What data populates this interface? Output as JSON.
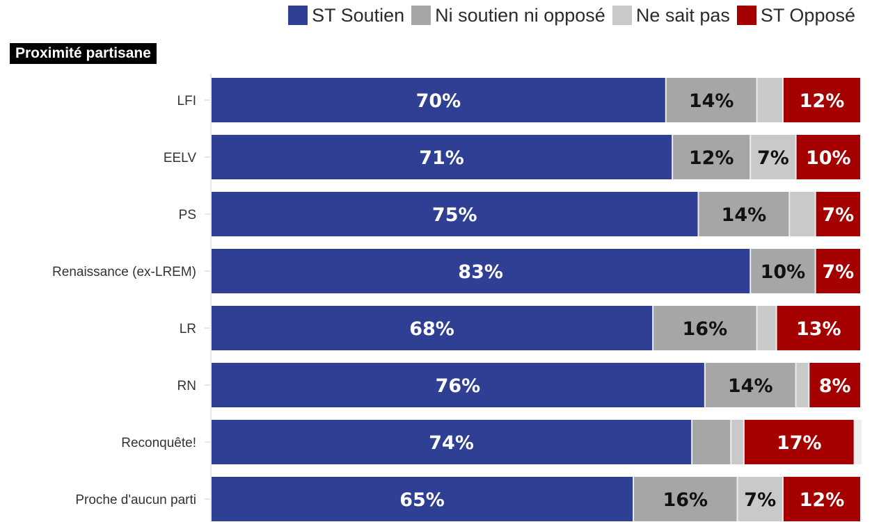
{
  "legend": [
    {
      "label": "ST Soutien",
      "color": "#2f3f93"
    },
    {
      "label": "Ni soutien ni opposé",
      "color": "#a6a6a6"
    },
    {
      "label": "Ne sait pas",
      "color": "#c9c9c9"
    },
    {
      "label": "ST Opposé",
      "color": "#a40000"
    }
  ],
  "section_title": "Proximité partisane",
  "chart_data": {
    "type": "bar",
    "orientation": "horizontal",
    "stacked": true,
    "unit": "%",
    "categories": [
      "LFI",
      "EELV",
      "PS",
      "Renaissance (ex-LREM)",
      "LR",
      "RN",
      "Reconquête!",
      "Proche d'aucun parti"
    ],
    "series": [
      {
        "name": "ST Soutien",
        "color": "#2f3f93",
        "label_color": "#ffffff",
        "values": [
          70,
          71,
          75,
          83,
          68,
          76,
          74,
          65
        ],
        "labels": [
          "70%",
          "71%",
          "75%",
          "83%",
          "68%",
          "76%",
          "74%",
          "65%"
        ]
      },
      {
        "name": "Ni soutien ni opposé",
        "color": "#a6a6a6",
        "label_color": "#111111",
        "values": [
          14,
          12,
          14,
          10,
          16,
          14,
          6,
          16
        ],
        "labels": [
          "14%",
          "12%",
          "14%",
          "10%",
          "16%",
          "14%",
          "",
          "16%"
        ]
      },
      {
        "name": "Ne sait pas",
        "color": "#c9c9c9",
        "label_color": "#111111",
        "values": [
          4,
          7,
          4,
          0,
          3,
          2,
          2,
          7
        ],
        "labels": [
          "",
          "7%",
          "",
          "",
          "",
          "",
          "",
          "7%"
        ]
      },
      {
        "name": "ST Opposé",
        "color": "#a40000",
        "label_color": "#ffffff",
        "values": [
          12,
          10,
          7,
          7,
          13,
          8,
          17,
          12
        ],
        "labels": [
          "12%",
          "10%",
          "7%",
          "7%",
          "13%",
          "8%",
          "17%",
          "12%"
        ]
      }
    ],
    "xlim": [
      0,
      100
    ],
    "legend_position": "top-right",
    "grid": false
  }
}
